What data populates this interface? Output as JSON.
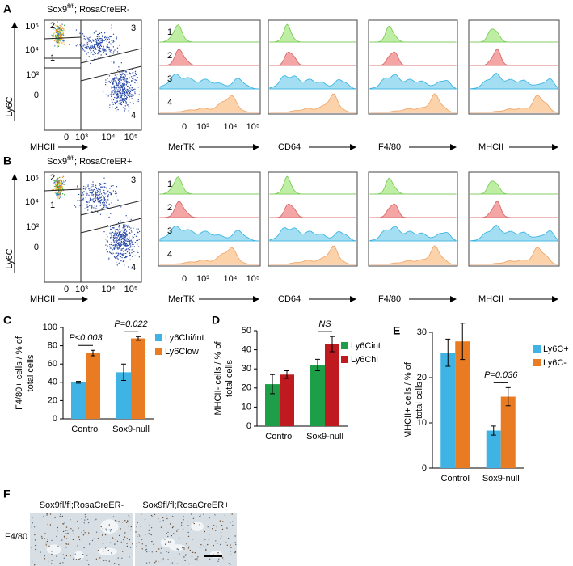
{
  "flow_panels": [
    {
      "label": "A",
      "title": {
        "gene": "Sox9",
        "superscript": "fl/fl",
        "rest": "; RosaCreER-"
      },
      "y_label": "Ly6C",
      "x_label": "MHCII",
      "y_ticks": [
        "10⁵",
        "10⁴",
        "10³",
        "0"
      ],
      "x_ticks": [
        "0",
        "10³",
        "10⁴",
        "10⁵"
      ],
      "gates": [
        "1",
        "2",
        "3",
        "4"
      ],
      "histogram_markers": [
        "MerTK",
        "CD64",
        "F4/80",
        "MHCII"
      ],
      "histogram_rows": [
        "1",
        "2",
        "3",
        "4"
      ],
      "histogram_x_ticks": [
        "0",
        "10³",
        "10⁴",
        "10⁵"
      ]
    },
    {
      "label": "B",
      "title": {
        "gene": "Sox9",
        "superscript": "fl/fl",
        "rest": "; RosaCreER+"
      },
      "y_label": "Ly6C",
      "x_label": "MHCII",
      "y_ticks": [
        "10⁵",
        "10⁴",
        "10³",
        "0"
      ],
      "x_ticks": [
        "0",
        "10³",
        "10⁴",
        "10⁵"
      ],
      "gates": [
        "1",
        "2",
        "3",
        "4"
      ],
      "histogram_markers": [
        "MerTK",
        "CD64",
        "F4/80",
        "MHCII"
      ],
      "histogram_rows": [
        "1",
        "2",
        "3",
        "4"
      ],
      "histogram_x_ticks": [
        "0",
        "10³",
        "10⁴",
        "10⁵"
      ]
    }
  ],
  "chart_data": [
    {
      "type": "bar",
      "label": "C",
      "ylabel": [
        "F4/80+ cells / % of",
        "total cells"
      ],
      "categories": [
        "Control",
        "Sox9-null"
      ],
      "series": [
        {
          "name": "Ly6Chi/int",
          "color": "#3fb3e3",
          "values": [
            40,
            51
          ],
          "errors": [
            1,
            9
          ]
        },
        {
          "name": "Ly6Clow",
          "color": "#e97b22",
          "values": [
            72,
            88
          ],
          "errors": [
            3,
            2
          ]
        }
      ],
      "ylim": [
        0,
        100
      ],
      "yticks": [
        0,
        20,
        40,
        60,
        80,
        100
      ],
      "annotations": [
        "P<0.003",
        "P=0.022"
      ]
    },
    {
      "type": "bar",
      "label": "D",
      "ylabel": [
        "MHCII- cells / % of",
        "total cells"
      ],
      "categories": [
        "Control",
        "Sox9-null"
      ],
      "series": [
        {
          "name": "Ly6Cint",
          "color": "#1f9e4a",
          "values": [
            22,
            32
          ],
          "errors": [
            5,
            3
          ]
        },
        {
          "name": "Ly6Chi",
          "color": "#bf1a1f",
          "values": [
            27,
            43
          ],
          "errors": [
            2,
            4
          ]
        }
      ],
      "ylim": [
        0,
        50
      ],
      "yticks": [
        0,
        10,
        20,
        30,
        40,
        50
      ],
      "annotations": [
        "NS"
      ]
    },
    {
      "type": "bar",
      "label": "E",
      "ylabel": [
        "MHCII+ cells / % of",
        "total cells"
      ],
      "categories": [
        "Control",
        "Sox9-null"
      ],
      "series": [
        {
          "name": "Ly6C+",
          "color": "#3fb3e3",
          "values": [
            25.5,
            8.3
          ],
          "errors": [
            3,
            1
          ]
        },
        {
          "name": "Ly6C-",
          "color": "#e97b22",
          "values": [
            28,
            15.8
          ],
          "errors": [
            4,
            2
          ]
        }
      ],
      "ylim": [
        0,
        30
      ],
      "yticks": [
        0,
        10,
        20,
        30
      ],
      "annotations": [
        "P=0.036"
      ]
    }
  ],
  "histology": {
    "label": "F",
    "stain": "F4/80",
    "columns": [
      "Sox9fl/fl;RosaCreER-",
      "Sox9fl/fl;RosaCreER+"
    ]
  }
}
